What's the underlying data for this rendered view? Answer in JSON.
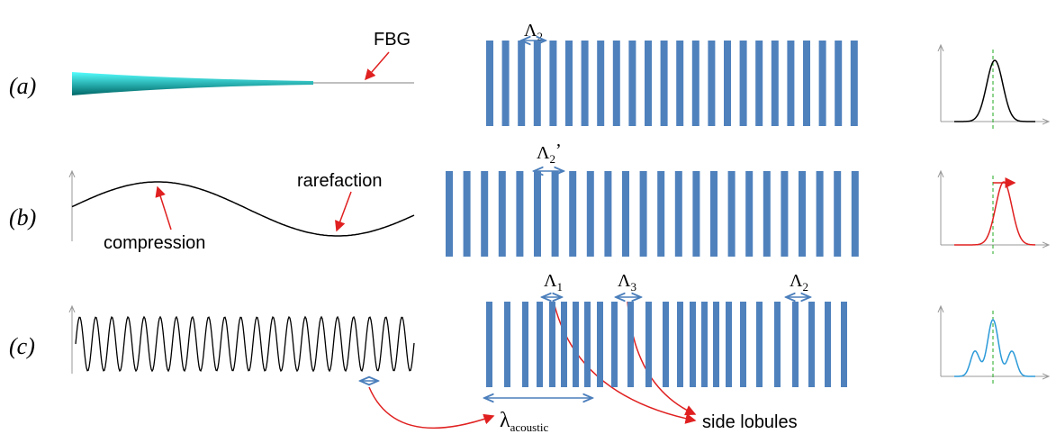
{
  "rows": [
    {
      "label": "(a)"
    },
    {
      "label": "(b)"
    },
    {
      "label": "(c)"
    }
  ],
  "annotations": {
    "fbg": "FBG",
    "rarefaction": "rarefaction",
    "compression": "compression",
    "side_lobules": "side lobules"
  },
  "periods": [
    {
      "symbol": "Λ",
      "subscript": "2"
    },
    {
      "symbol": "Λ",
      "subscript": "2",
      "prime": "’"
    },
    {
      "symbol": "Λ",
      "subscript": "1"
    },
    {
      "symbol": "Λ",
      "subscript": "3"
    },
    {
      "symbol": "Λ",
      "subscript": "2"
    }
  ],
  "wavelength": {
    "symbol": "λ",
    "subscript": "acoustic"
  }
}
